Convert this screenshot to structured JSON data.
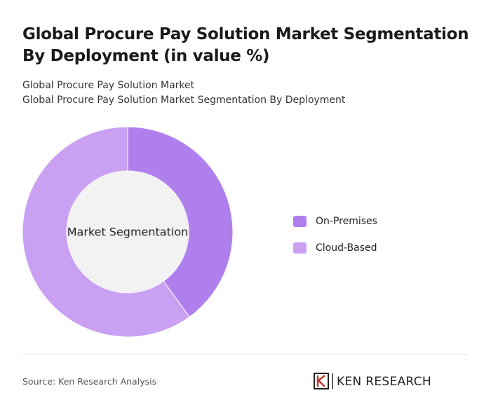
{
  "chart_data": {
    "type": "donut",
    "title": "Global Procure Pay Solution Market Segmentation By Deployment (in value %)",
    "subtitle": [
      "Global Procure Pay Solution Market",
      "Global Procure Pay Solution Market Segmentation By Deployment"
    ],
    "center_label": "Market Segmentation",
    "categories": [
      "On-Premises",
      "Cloud-Based"
    ],
    "values": [
      40,
      60
    ],
    "colors": [
      "#b07fee",
      "#caa0f3"
    ],
    "source": "Source: Ken Research Analysis",
    "logo": "KEN RESEARCH"
  }
}
